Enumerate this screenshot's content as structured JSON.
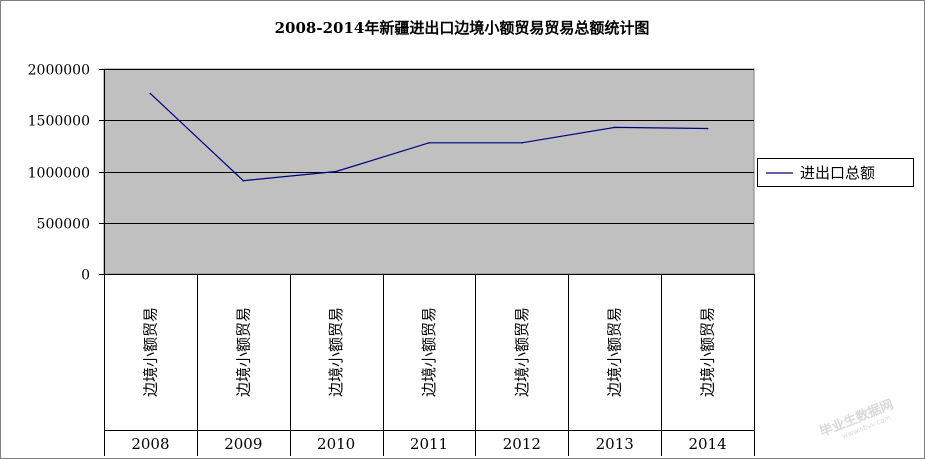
{
  "chart_data": {
    "type": "line",
    "title": "2008-2014年新疆进出口边境小额贸易贸易总额统计图",
    "categories": [
      {
        "group": "2008",
        "label": "边境小额贸易"
      },
      {
        "group": "2009",
        "label": "边境小额贸易"
      },
      {
        "group": "2010",
        "label": "边境小额贸易"
      },
      {
        "group": "2011",
        "label": "边境小额贸易"
      },
      {
        "group": "2012",
        "label": "边境小额贸易"
      },
      {
        "group": "2013",
        "label": "边境小额贸易"
      },
      {
        "group": "2014",
        "label": "边境小额贸易"
      }
    ],
    "series": [
      {
        "name": "进出口总额",
        "values": [
          1760000,
          910000,
          1000000,
          1280000,
          1280000,
          1430000,
          1420000
        ]
      }
    ],
    "ylim": [
      0,
      2000000
    ],
    "yticks": [
      "2000000",
      "1500000",
      "1000000",
      "500000",
      "0"
    ],
    "grid": true,
    "legend": "right",
    "colors": {
      "line": "#000080",
      "plot_bg": "#c0c0c0",
      "grid": "#000000"
    }
  },
  "watermark": {
    "text": "毕业生数据网",
    "sub": "www.sbvv.com"
  }
}
